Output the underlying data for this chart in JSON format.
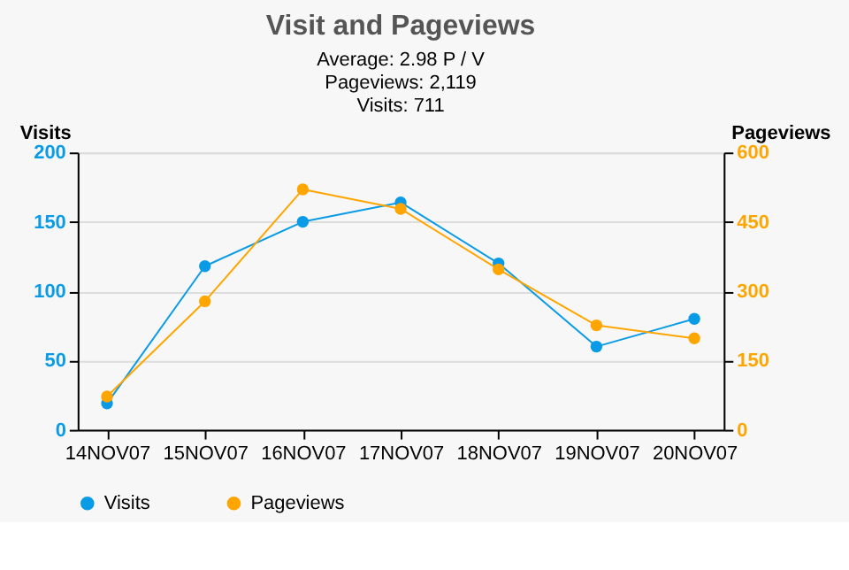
{
  "chart_data": {
    "type": "line",
    "title": "Visit and Pageviews",
    "annotations": [
      "Average:  2.98 P / V",
      "Pageviews:   2,119",
      "Visits:     711"
    ],
    "ylabel": "Visits",
    "y2label": "Pageviews",
    "categories": [
      "14NOV07",
      "15NOV07",
      "16NOV07",
      "17NOV07",
      "18NOV07",
      "19NOV07",
      "20NOV07"
    ],
    "series": [
      {
        "name": "Visits",
        "color": "#0a9be6",
        "values": [
          19,
          118,
          150,
          164,
          120,
          60,
          80
        ]
      },
      {
        "name": "Pageviews",
        "color": "#ffa500",
        "axis": "y2",
        "values": [
          72,
          278,
          520,
          478,
          347,
          226,
          198
        ]
      }
    ],
    "ylim": [
      0,
      200
    ],
    "yticks": [
      0,
      50,
      100,
      150,
      200
    ],
    "y2lim": [
      0,
      600
    ],
    "y2ticks": [
      0,
      150,
      300,
      450,
      600
    ],
    "grid": "y",
    "legend": "bottom left",
    "marker": "circle",
    "line_style": "solid"
  }
}
